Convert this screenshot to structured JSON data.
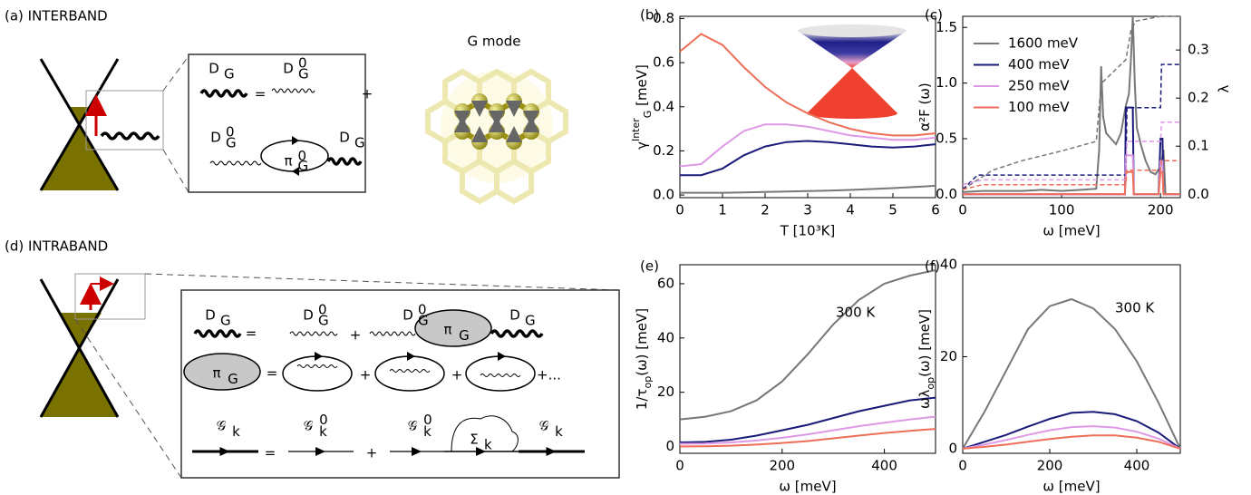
{
  "panel_a": {
    "label": "(a) INTERBAND",
    "g_mode": "G mode"
  },
  "panel_d": {
    "label": "(d) INTRABAND"
  },
  "symbols": {
    "D": "D",
    "G": "G",
    "zero": "0",
    "pi": "π",
    "calG": "𝒢",
    "k": "k",
    "sigma": "Σ",
    "equals": "=",
    "plus": "+",
    "plus_dots": "+..."
  },
  "chart_data": [
    {
      "type": "line",
      "label": "(b)",
      "xlabel": "T [10³K]",
      "ylabel": {
        "symbol": "γ",
        "sup": "Inter",
        "sub": "G",
        "unit": " [meV]"
      },
      "x": [
        0,
        0.5,
        1,
        1.5,
        2,
        2.5,
        3,
        3.5,
        4,
        4.5,
        5,
        5.5,
        6
      ],
      "xlim": [
        0,
        6
      ],
      "xticks": [
        0,
        1,
        2,
        3,
        4,
        5,
        6
      ],
      "ylim": [
        -0.012,
        0.81
      ],
      "yticks": [
        {
          "value": 0,
          "label": "0.0"
        },
        {
          "value": 0.2,
          "label": "0.2"
        },
        {
          "value": 0.4,
          "label": "0.4"
        },
        {
          "value": 0.6,
          "label": "0.6"
        },
        {
          "value": 0.8,
          "label": "0.8"
        }
      ],
      "series": [
        {
          "color": "#777777",
          "values": [
            0.01,
            0.01,
            0.01,
            0.012,
            0.014,
            0.016,
            0.018,
            0.02,
            0.023,
            0.027,
            0.031,
            0.036,
            0.042
          ]
        },
        {
          "color": "#1a1a7a",
          "values": [
            0.09,
            0.09,
            0.12,
            0.18,
            0.22,
            0.24,
            0.245,
            0.24,
            0.23,
            0.22,
            0.215,
            0.22,
            0.23
          ]
        },
        {
          "color": "#dd99e6",
          "values": [
            0.13,
            0.14,
            0.22,
            0.29,
            0.32,
            0.32,
            0.31,
            0.29,
            0.27,
            0.26,
            0.25,
            0.25,
            0.26
          ]
        },
        {
          "color": "#ee6e58",
          "values": [
            0.65,
            0.73,
            0.68,
            0.58,
            0.49,
            0.42,
            0.37,
            0.33,
            0.3,
            0.28,
            0.27,
            0.27,
            0.28
          ]
        }
      ]
    },
    {
      "type": "line",
      "label": "(c)",
      "xlabel": "ω [meV]",
      "ylabel": {
        "symbol": "α²F (ω)"
      },
      "y2label": {
        "symbol": "λ"
      },
      "xlim": [
        0,
        220
      ],
      "xticks": [
        0,
        100,
        200
      ],
      "ylim": [
        -0.03,
        1.6
      ],
      "yticks": [
        {
          "value": 0,
          "label": "0.0"
        },
        {
          "value": 0.5,
          "label": "0.5"
        },
        {
          "value": 1,
          "label": "1.0"
        },
        {
          "value": 1.5,
          "label": "1.5"
        }
      ],
      "y2lim": [
        -0.007,
        0.37
      ],
      "y2ticks": [
        {
          "value": 0,
          "label": "0.0"
        },
        {
          "value": 0.1,
          "label": "0.1"
        },
        {
          "value": 0.2,
          "label": "0.2"
        },
        {
          "value": 0.3,
          "label": "0.3"
        }
      ],
      "legend": "upper left",
      "series": [
        {
          "name": "1600 meV",
          "color": "#777777",
          "x": [
            0,
            20,
            40,
            60,
            80,
            100,
            120,
            135,
            138,
            140,
            142,
            145,
            150,
            155,
            160,
            165,
            168,
            170,
            172,
            174,
            176,
            180,
            185,
            190,
            195,
            200,
            203,
            205,
            210,
            220
          ],
          "values": [
            0.02,
            0.03,
            0.03,
            0.03,
            0.04,
            0.03,
            0.04,
            0.05,
            0.4,
            1.15,
            0.7,
            0.55,
            0.5,
            0.45,
            0.55,
            0.8,
            0.9,
            1.2,
            1.6,
            1.0,
            0.6,
            0.45,
            0.3,
            0.2,
            0.18,
            0.25,
            0.4,
            0,
            0,
            0
          ]
        },
        {
          "name": "400 meV",
          "color": "#1a1a7a",
          "x": [
            0,
            160,
            164,
            165,
            170,
            172,
            173,
            180,
            198,
            200,
            202,
            203,
            220
          ],
          "values": [
            0,
            0,
            0,
            0.78,
            0.78,
            0.78,
            0,
            0,
            0,
            0.5,
            0.5,
            0,
            0
          ]
        },
        {
          "name": "250 meV",
          "color": "#dd99e6",
          "x": [
            0,
            160,
            164,
            165,
            170,
            172,
            173,
            180,
            198,
            200,
            202,
            203,
            220
          ],
          "values": [
            0,
            0,
            0,
            0.35,
            0.35,
            0.35,
            0,
            0,
            0,
            0.3,
            0.3,
            0,
            0
          ]
        },
        {
          "name": "100 meV",
          "color": "#ee6e58",
          "x": [
            0,
            160,
            164,
            165,
            170,
            172,
            173,
            180,
            198,
            200,
            202,
            203,
            220
          ],
          "values": [
            0,
            0,
            0,
            0.2,
            0.2,
            0.2,
            0,
            0,
            0,
            0.2,
            0.2,
            0,
            0
          ]
        },
        {
          "color": "#777777",
          "axis": "y2",
          "style": "dashed",
          "x": [
            0,
            15,
            30,
            60,
            100,
            135,
            140,
            165,
            170,
            175,
            200,
            220
          ],
          "values": [
            0.01,
            0.03,
            0.05,
            0.07,
            0.09,
            0.11,
            0.23,
            0.28,
            0.34,
            0.36,
            0.37,
            0.37
          ]
        },
        {
          "color": "#1a1a7a",
          "axis": "y2",
          "style": "dashed",
          "x": [
            0,
            15,
            165,
            166,
            200,
            201,
            220
          ],
          "values": [
            0.01,
            0.04,
            0.04,
            0.18,
            0.18,
            0.27,
            0.27
          ]
        },
        {
          "color": "#dd99e6",
          "axis": "y2",
          "style": "dashed",
          "x": [
            0,
            20,
            165,
            166,
            200,
            201,
            220
          ],
          "values": [
            0.02,
            0.03,
            0.03,
            0.11,
            0.11,
            0.15,
            0.15
          ]
        },
        {
          "color": "#ee6e58",
          "axis": "y2",
          "style": "dashed",
          "x": [
            0,
            20,
            165,
            166,
            200,
            201,
            220
          ],
          "values": [
            0.01,
            0.02,
            0.02,
            0.05,
            0.05,
            0.07,
            0.07
          ]
        }
      ]
    },
    {
      "type": "line",
      "label": "(e)",
      "xlabel": "ω [meV]",
      "ylabel": {
        "symbol": "1/τ",
        "sub": "op",
        "unit": "(ω) [meV]"
      },
      "annotation": "300 K",
      "x": [
        0,
        50,
        100,
        150,
        200,
        250,
        300,
        350,
        400,
        450,
        500
      ],
      "xlim": [
        0,
        500
      ],
      "xticks": [
        0,
        200,
        400
      ],
      "ylim": [
        -2.5,
        67
      ],
      "yticks": [
        0,
        20,
        40,
        60
      ],
      "series": [
        {
          "color": "#777777",
          "values": [
            10,
            11,
            13,
            17,
            24,
            34,
            45,
            54,
            60,
            63,
            65
          ]
        },
        {
          "color": "#1a1a7a",
          "values": [
            1.5,
            1.7,
            2.5,
            4,
            6,
            8,
            10.5,
            13,
            15,
            17,
            18
          ]
        },
        {
          "color": "#dd99e6",
          "values": [
            1,
            1.1,
            1.5,
            2.2,
            3.2,
            4.5,
            6,
            7.5,
            8.8,
            10,
            11
          ]
        },
        {
          "color": "#ee6e58",
          "values": [
            0,
            0.1,
            0.3,
            0.7,
            1.3,
            2,
            3,
            4,
            5,
            5.8,
            6.5
          ]
        }
      ]
    },
    {
      "type": "line",
      "label": "(f)",
      "xlabel": "ω [meV]",
      "ylabel": {
        "symbol": "ωλ",
        "sub": "op",
        "unit": "(ω) [meV]"
      },
      "annotation": "300 K",
      "x": [
        0,
        50,
        100,
        150,
        200,
        250,
        300,
        350,
        400,
        450,
        500
      ],
      "xlim": [
        0,
        500
      ],
      "xticks": [
        0,
        200,
        400
      ],
      "ylim": [
        -1,
        40
      ],
      "yticks": [
        0,
        20,
        40
      ],
      "series": [
        {
          "color": "#777777",
          "values": [
            0,
            8,
            17,
            26,
            31,
            32.5,
            30.5,
            26,
            19,
            10,
            0
          ]
        },
        {
          "color": "#1a1a7a",
          "values": [
            0,
            1.5,
            3,
            4.8,
            6.5,
            7.8,
            8,
            7.5,
            6,
            3.5,
            0
          ]
        },
        {
          "color": "#dd99e6",
          "values": [
            0,
            0.9,
            1.9,
            3,
            4,
            4.7,
            4.9,
            4.6,
            3.7,
            2.2,
            0
          ]
        },
        {
          "color": "#ee6e58",
          "values": [
            0,
            0.4,
            0.9,
            1.5,
            2.1,
            2.6,
            2.9,
            2.9,
            2.4,
            1.5,
            0
          ]
        }
      ]
    }
  ]
}
